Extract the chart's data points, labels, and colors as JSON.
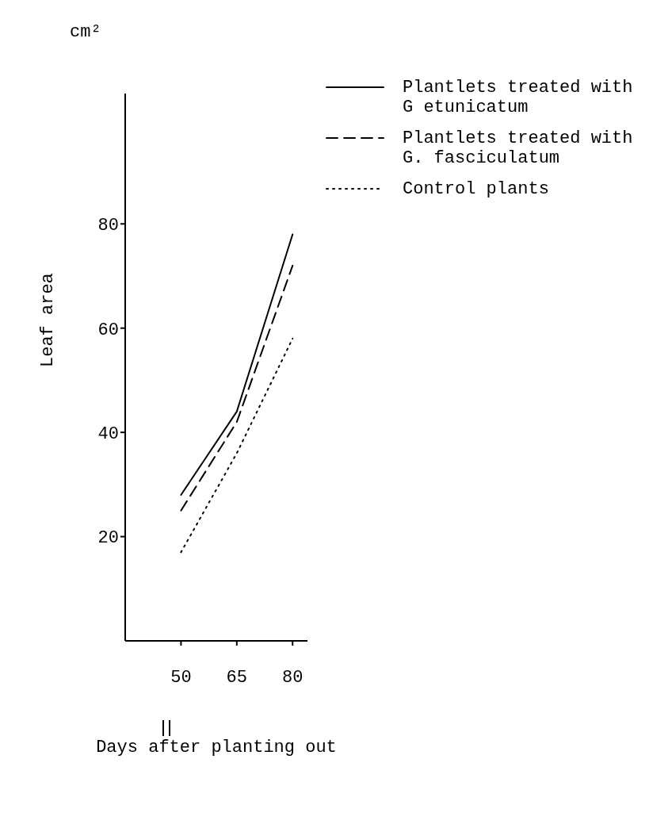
{
  "chart_data": {
    "type": "line",
    "xlabel": "Days after planting out",
    "ylabel": "Leaf area",
    "annotations": [
      "cm²"
    ],
    "x": [
      50,
      65,
      80
    ],
    "series": [
      {
        "name": "Plantlets treated with G etunicatum",
        "color": "#000000",
        "line_style": "solid",
        "values": [
          28,
          44,
          78
        ]
      },
      {
        "name": "Plantlets treated with G. fasciculatum",
        "color": "#000000",
        "line_style": "dashed",
        "values": [
          25,
          42,
          72
        ]
      },
      {
        "name": "Control plants",
        "color": "#000000",
        "line_style": "dotted",
        "values": [
          17,
          36,
          58
        ]
      }
    ],
    "xlim": [
      35,
      84
    ],
    "xticks": [
      50,
      65,
      80
    ],
    "ylim": [
      0,
      105
    ],
    "yticks": [
      20,
      40,
      60,
      80
    ],
    "grid": false,
    "legend": "top right",
    "marker": "none"
  }
}
